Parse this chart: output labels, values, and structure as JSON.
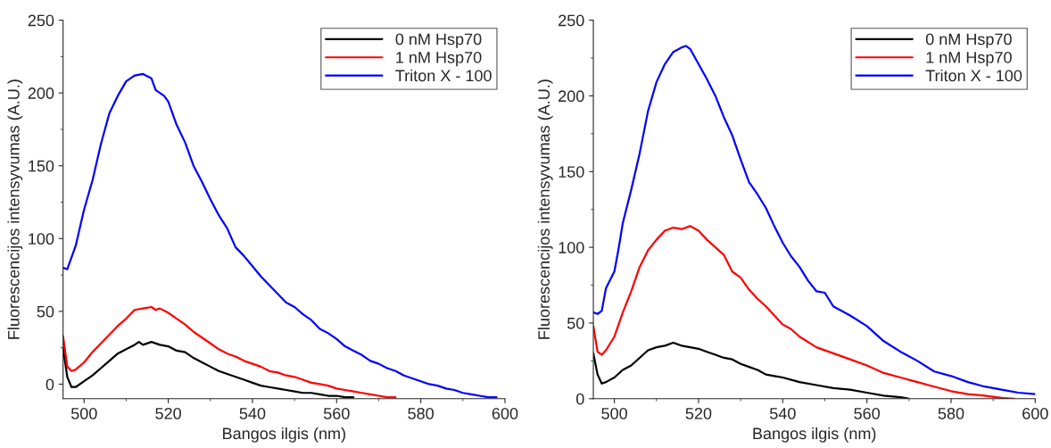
{
  "chart_data": [
    {
      "type": "line",
      "xlabel": "Bangos ilgis (nm)",
      "ylabel": "Fluorescencijos intensyvumas (A.U.)",
      "xlim": [
        495,
        600
      ],
      "ylim": [
        -10,
        250
      ],
      "xticks": [
        500,
        520,
        540,
        560,
        580,
        600
      ],
      "yticks": [
        0,
        50,
        100,
        150,
        200,
        250
      ],
      "legend": "top right",
      "grid": false,
      "line_style": "solid",
      "marker": "none",
      "series": [
        {
          "name": "0 nM Hsp70",
          "color": "#000000",
          "x": [
            495,
            496,
            497,
            498,
            500,
            502,
            504,
            506,
            508,
            510,
            512,
            513,
            514,
            516,
            518,
            520,
            522,
            524,
            526,
            528,
            530,
            532,
            534,
            536,
            538,
            540,
            542,
            544,
            546,
            548,
            550,
            552,
            554,
            556,
            558,
            560,
            562,
            564
          ],
          "values": [
            25,
            5,
            -2,
            -2,
            2,
            6,
            11,
            16,
            21,
            24,
            27,
            29,
            27,
            29,
            27,
            26,
            23,
            22,
            18,
            15,
            12,
            9,
            7,
            5,
            3,
            1,
            -1,
            -2,
            -3,
            -4,
            -5,
            -6,
            -6,
            -7,
            -8,
            -8,
            -9,
            -9
          ]
        },
        {
          "name": "1 nM Hsp70",
          "color": "#ff0000",
          "x": [
            495,
            496,
            497,
            498,
            500,
            502,
            504,
            506,
            508,
            510,
            512,
            514,
            516,
            517,
            518,
            520,
            522,
            524,
            526,
            528,
            530,
            532,
            534,
            536,
            538,
            540,
            542,
            544,
            546,
            548,
            550,
            552,
            554,
            556,
            558,
            560,
            562,
            564,
            566,
            568,
            570,
            572,
            574
          ],
          "values": [
            33,
            12,
            9,
            10,
            15,
            22,
            28,
            34,
            40,
            45,
            51,
            52,
            53,
            51,
            52,
            49,
            45,
            41,
            36,
            32,
            28,
            24,
            21,
            19,
            16,
            14,
            12,
            9,
            8,
            6,
            5,
            3,
            1,
            0,
            -1,
            -3,
            -4,
            -5,
            -6,
            -7,
            -8,
            -9,
            -9
          ]
        },
        {
          "name": "Triton X - 100",
          "color": "#0000ff",
          "x": [
            495,
            496,
            498,
            500,
            502,
            504,
            506,
            508,
            510,
            512,
            514,
            516,
            517,
            519,
            520,
            522,
            524,
            526,
            528,
            530,
            532,
            534,
            536,
            538,
            540,
            542,
            544,
            546,
            548,
            550,
            552,
            554,
            556,
            558,
            560,
            562,
            564,
            566,
            568,
            570,
            572,
            574,
            576,
            578,
            580,
            582,
            584,
            586,
            588,
            590,
            592,
            594,
            596,
            598
          ],
          "values": [
            80,
            79,
            95,
            120,
            140,
            165,
            186,
            198,
            208,
            212,
            213,
            210,
            202,
            198,
            194,
            178,
            166,
            150,
            139,
            127,
            116,
            107,
            94,
            88,
            81,
            74,
            68,
            62,
            56,
            53,
            48,
            44,
            38,
            35,
            31,
            26,
            23,
            20,
            16,
            14,
            11,
            9,
            6,
            4,
            2,
            0,
            -1,
            -3,
            -4,
            -6,
            -7,
            -8,
            -9,
            -9
          ]
        }
      ]
    },
    {
      "type": "line",
      "xlabel": "Bangos ilgis (nm)",
      "ylabel": "Fluorescencijos intensyvumas (A.U.)",
      "xlim": [
        495,
        600
      ],
      "ylim": [
        0,
        250
      ],
      "xticks": [
        500,
        520,
        540,
        560,
        580,
        600
      ],
      "yticks": [
        0,
        50,
        100,
        150,
        200,
        250
      ],
      "legend": "top right",
      "grid": false,
      "line_style": "solid",
      "marker": "none",
      "series": [
        {
          "name": "0 nM Hsp70",
          "color": "#000000",
          "x": [
            495,
            496,
            497,
            498,
            500,
            502,
            504,
            506,
            508,
            510,
            512,
            514,
            516,
            518,
            520,
            522,
            524,
            526,
            528,
            530,
            532,
            534,
            536,
            538,
            540,
            544,
            548,
            552,
            556,
            560,
            564,
            568,
            570
          ],
          "values": [
            30,
            16,
            10,
            11,
            14,
            19,
            22,
            27,
            32,
            34,
            35,
            37,
            35,
            34,
            33,
            31,
            29,
            27,
            26,
            23,
            21,
            19,
            16,
            15,
            14,
            11,
            9,
            7,
            6,
            4,
            2,
            1,
            0
          ]
        },
        {
          "name": "1 nM Hsp70",
          "color": "#ff0000",
          "x": [
            495,
            496,
            497,
            498,
            500,
            502,
            504,
            506,
            508,
            510,
            512,
            514,
            516,
            518,
            520,
            522,
            524,
            526,
            528,
            530,
            532,
            534,
            536,
            538,
            540,
            542,
            544,
            548,
            552,
            556,
            560,
            564,
            568,
            572,
            576,
            580,
            584,
            588,
            592,
            595
          ],
          "values": [
            48,
            31,
            29,
            32,
            41,
            57,
            71,
            87,
            98,
            105,
            111,
            113,
            112,
            114,
            111,
            105,
            100,
            95,
            84,
            80,
            72,
            66,
            61,
            55,
            49,
            46,
            41,
            34,
            30,
            26,
            22,
            17,
            14,
            11,
            8,
            5,
            3,
            2,
            0.5,
            0
          ]
        },
        {
          "name": "Triton X - 100",
          "color": "#0000ff",
          "x": [
            495,
            496,
            497,
            498,
            500,
            501,
            502,
            504,
            506,
            508,
            510,
            512,
            514,
            516,
            517,
            518,
            520,
            522,
            524,
            526,
            528,
            530,
            532,
            534,
            536,
            538,
            540,
            542,
            544,
            546,
            548,
            550,
            552,
            556,
            560,
            564,
            568,
            572,
            576,
            580,
            584,
            588,
            592,
            596,
            600
          ],
          "values": [
            57,
            56,
            58,
            73,
            84,
            99,
            116,
            138,
            162,
            190,
            209,
            221,
            229,
            232,
            233,
            231,
            221,
            211,
            200,
            186,
            174,
            158,
            143,
            135,
            126,
            114,
            103,
            94,
            87,
            78,
            71,
            70,
            61,
            55,
            48,
            38,
            31,
            25,
            18,
            15,
            11,
            8,
            6,
            4,
            3
          ]
        }
      ]
    }
  ]
}
